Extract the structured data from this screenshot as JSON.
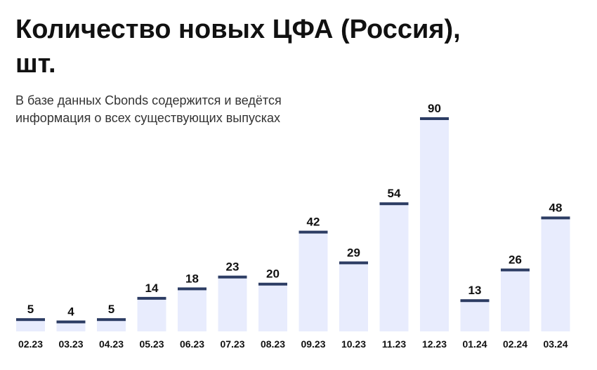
{
  "header": {
    "title_line1": "Количество новых ЦФА (Россия),",
    "title_line2": "шт.",
    "subtitle_line1": "В базе данных Cbonds содержится и ведётся",
    "subtitle_line2": "информация о всех существующих выпусках"
  },
  "colors": {
    "bar_fill": "#e8ecfd",
    "bar_top_line": "#2c3c63",
    "text": "#111111"
  },
  "chart_data": {
    "type": "bar",
    "title": "Количество новых ЦФА (Россия), шт.",
    "subtitle": "В базе данных Cbonds содержится и ведётся информация о всех существующих выпусках",
    "categories": [
      "02.23",
      "03.23",
      "04.23",
      "05.23",
      "06.23",
      "07.23",
      "08.23",
      "09.23",
      "10.23",
      "11.23",
      "12.23",
      "01.24",
      "02.24",
      "03.24"
    ],
    "values": [
      5,
      4,
      5,
      14,
      18,
      23,
      20,
      42,
      29,
      54,
      90,
      13,
      26,
      48
    ],
    "xlabel": "",
    "ylabel": "",
    "ylim": [
      0,
      90
    ],
    "grid": false,
    "legend": "none"
  }
}
